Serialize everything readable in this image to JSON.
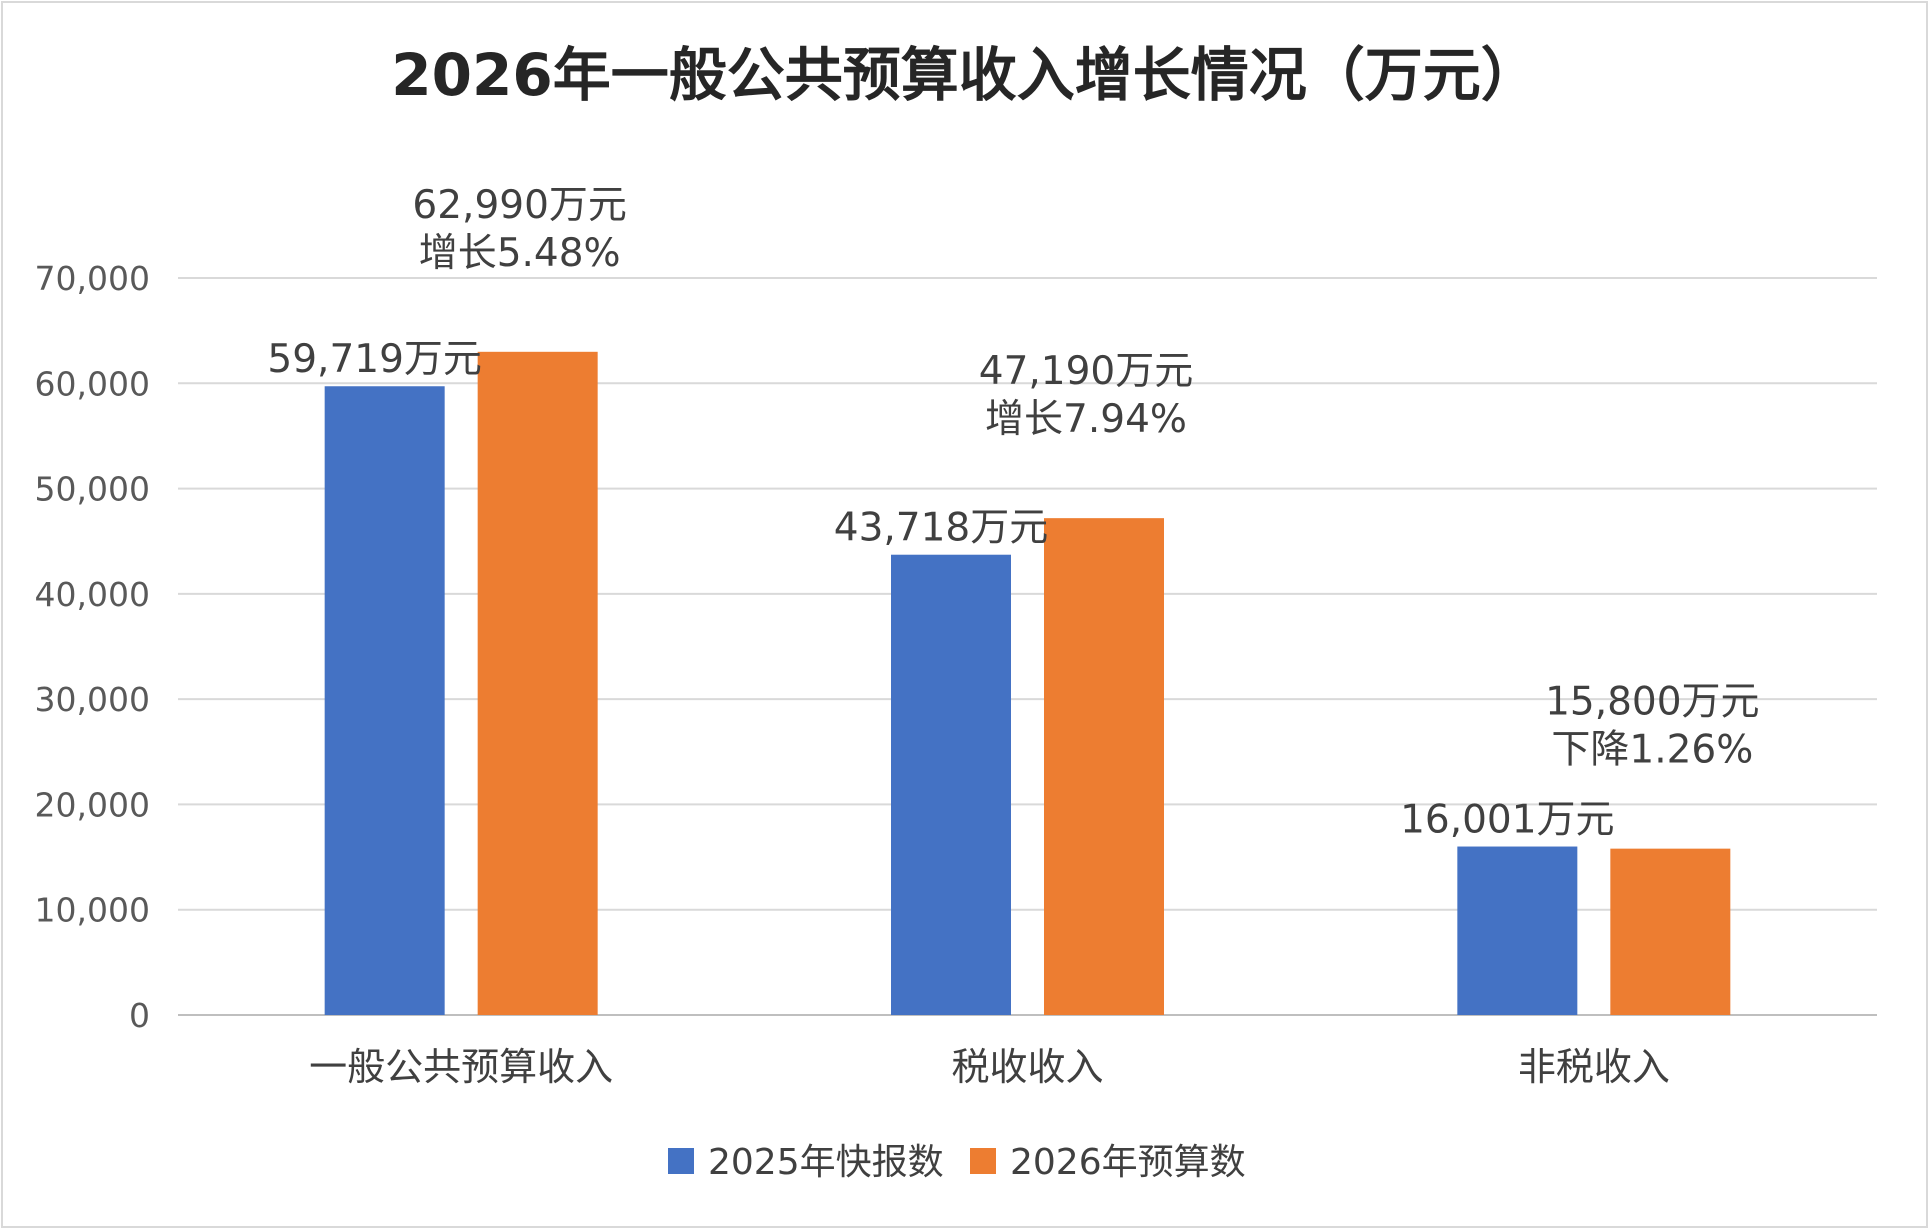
{
  "chart_data": {
    "type": "bar",
    "title": "2026年一般公共预算收入增长情况（万元）",
    "categories": [
      "一般公共预算收入",
      "税收收入",
      "非税收入"
    ],
    "series": [
      {
        "name": "2025年快报数",
        "color": "#4472C4",
        "values": [
          59719,
          43718,
          16001
        ],
        "labels": [
          [
            "59,719万元"
          ],
          [
            "43,718万元"
          ],
          [
            "16,001万元"
          ]
        ]
      },
      {
        "name": "2026年预算数",
        "color": "#ED7D31",
        "values": [
          62990,
          47190,
          15800
        ],
        "labels": [
          [
            "62,990万元",
            "增长5.48%"
          ],
          [
            "47,190万元",
            "增长7.94%"
          ],
          [
            "15,800万元",
            "下降1.26%"
          ]
        ]
      }
    ],
    "ylim": [
      0,
      70000
    ],
    "yticks": [
      0,
      10000,
      20000,
      30000,
      40000,
      50000,
      60000,
      70000
    ],
    "ytick_labels": [
      "0",
      "10,000",
      "20,000",
      "30,000",
      "40,000",
      "50,000",
      "60,000",
      "70,000"
    ],
    "xlabel": "",
    "ylabel": "",
    "grid": true,
    "legend": "bottom"
  }
}
